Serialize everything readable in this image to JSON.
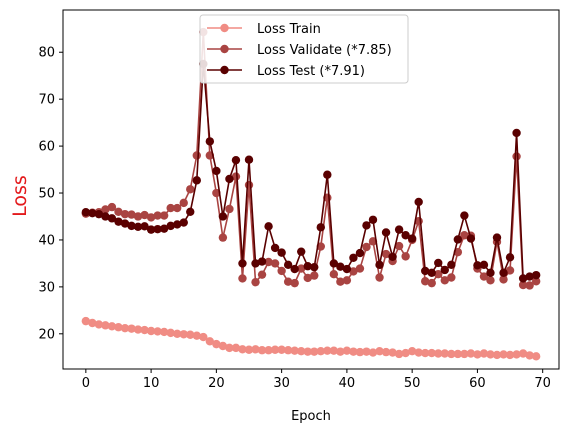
{
  "chart_data": {
    "type": "line",
    "title": "",
    "xlabel": "Epoch",
    "ylabel": "Loss",
    "ylabel_color": "#e31a1c",
    "xlim": [
      -3.5,
      72.5
    ],
    "ylim": [
      12.5,
      89
    ],
    "xticks": [
      0,
      10,
      20,
      30,
      40,
      50,
      60,
      70
    ],
    "yticks": [
      20,
      30,
      40,
      50,
      60,
      70,
      80
    ],
    "grid": false,
    "legend_position": "top-center",
    "x": [
      0,
      1,
      2,
      3,
      4,
      5,
      6,
      7,
      8,
      9,
      10,
      11,
      12,
      13,
      14,
      15,
      16,
      17,
      18,
      19,
      20,
      21,
      22,
      23,
      24,
      25,
      26,
      27,
      28,
      29,
      30,
      31,
      32,
      33,
      34,
      35,
      36,
      37,
      38,
      39,
      40,
      41,
      42,
      43,
      44,
      45,
      46,
      47,
      48,
      49,
      50,
      51,
      52,
      53,
      54,
      55,
      56,
      57,
      58,
      59,
      60,
      61,
      62,
      63,
      64,
      65,
      66,
      67,
      68,
      69
    ],
    "series": [
      {
        "name": "Loss Train",
        "color": "#f08c84",
        "values": [
          22.7,
          22.3,
          22.0,
          21.8,
          21.6,
          21.4,
          21.2,
          21.1,
          20.9,
          20.8,
          20.6,
          20.5,
          20.4,
          20.2,
          20.0,
          19.9,
          19.8,
          19.6,
          19.3,
          18.4,
          17.8,
          17.4,
          17.0,
          17.0,
          16.7,
          16.6,
          16.7,
          16.5,
          16.5,
          16.6,
          16.6,
          16.5,
          16.4,
          16.3,
          16.2,
          16.2,
          16.3,
          16.4,
          16.4,
          16.2,
          16.4,
          16.2,
          16.1,
          16.2,
          16.0,
          16.3,
          16.1,
          16.0,
          15.7,
          15.9,
          16.3,
          16.0,
          15.9,
          15.9,
          15.8,
          15.8,
          15.7,
          15.7,
          15.7,
          15.8,
          15.6,
          15.8,
          15.6,
          15.5,
          15.6,
          15.5,
          15.6,
          15.8,
          15.4,
          15.2
        ]
      },
      {
        "name": "Loss Validate (*7.85)",
        "color": "#a94442",
        "values": [
          45.6,
          45.8,
          45.9,
          46.5,
          47.0,
          46.0,
          45.5,
          45.4,
          45.0,
          45.3,
          44.8,
          45.2,
          45.2,
          46.8,
          46.8,
          47.9,
          50.8,
          58.0,
          84.3,
          58.0,
          50.0,
          40.5,
          46.6,
          53.5,
          31.8,
          51.7,
          31.0,
          32.6,
          35.3,
          35.0,
          33.4,
          31.1,
          30.8,
          33.9,
          31.9,
          32.4,
          38.6,
          49.0,
          32.7,
          31.1,
          31.4,
          33.3,
          33.9,
          38.5,
          39.7,
          32.0,
          37.0,
          35.5,
          38.7,
          36.5,
          40.0,
          44.0,
          31.2,
          30.8,
          32.7,
          31.4,
          32.0,
          37.4,
          41.0,
          40.9,
          33.9,
          32.2,
          31.4,
          39.6,
          31.6,
          33.5,
          57.8,
          30.4,
          30.3,
          31.2
        ]
      },
      {
        "name": "Loss Test (*7.91)",
        "color": "#5a0000",
        "values": [
          45.9,
          45.7,
          45.5,
          45.0,
          44.6,
          43.9,
          43.5,
          43.0,
          42.8,
          42.9,
          42.2,
          42.3,
          42.4,
          43.0,
          43.3,
          43.7,
          46.0,
          52.7,
          77.5,
          61.0,
          54.7,
          45.0,
          53.0,
          57.0,
          35.0,
          57.1,
          35.0,
          35.4,
          42.9,
          38.3,
          37.3,
          34.7,
          33.8,
          37.5,
          34.4,
          34.2,
          42.7,
          53.9,
          35.0,
          34.3,
          33.8,
          36.2,
          37.2,
          43.1,
          44.3,
          34.7,
          41.6,
          36.4,
          42.2,
          41.0,
          40.3,
          48.1,
          33.4,
          33.0,
          35.1,
          33.6,
          34.7,
          40.1,
          45.2,
          40.3,
          34.6,
          34.7,
          33.0,
          40.5,
          33.0,
          36.3,
          62.8,
          31.8,
          32.2,
          32.5
        ]
      }
    ]
  }
}
